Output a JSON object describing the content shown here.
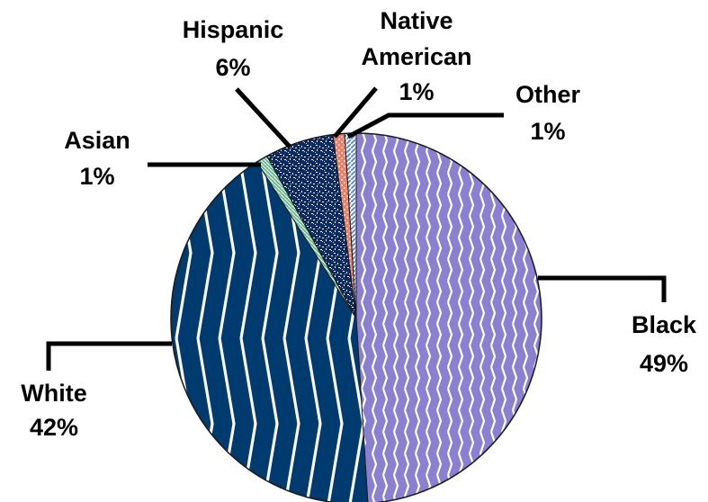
{
  "chart_data": {
    "type": "pie",
    "title": "",
    "unit": "%",
    "slices": [
      {
        "name": "Black",
        "value": 49,
        "value_label": "49%",
        "color": "#8a7fd0",
        "pattern": "chevron-white-fine"
      },
      {
        "name": "White",
        "value": 42,
        "value_label": "42%",
        "color": "#003b6f",
        "pattern": "chevron-white-bold"
      },
      {
        "name": "Asian",
        "value": 1,
        "value_label": "1%",
        "color": "#5cbf8a",
        "pattern": "stripe"
      },
      {
        "name": "Hispanic",
        "value": 6,
        "value_label": "6%",
        "color": "#0f2a5e",
        "pattern": "white-speckle"
      },
      {
        "name": "Native American",
        "value": 1,
        "value_label": "1%",
        "color": "#e9826a",
        "pattern": "white-dots"
      },
      {
        "name": "Other",
        "value": 1,
        "value_label": "1%",
        "color": "#5b8fd6",
        "pattern": "diagonal-stripe"
      }
    ],
    "labels": {
      "black": [
        "Black",
        "49%"
      ],
      "white": [
        "White",
        "42%"
      ],
      "asian": [
        "Asian",
        "1%"
      ],
      "hispanic": [
        "Hispanic",
        "6%"
      ],
      "native": [
        "Native",
        "American",
        "1%"
      ],
      "other": [
        "Other",
        "1%"
      ]
    },
    "legend": "none",
    "grid": false
  }
}
